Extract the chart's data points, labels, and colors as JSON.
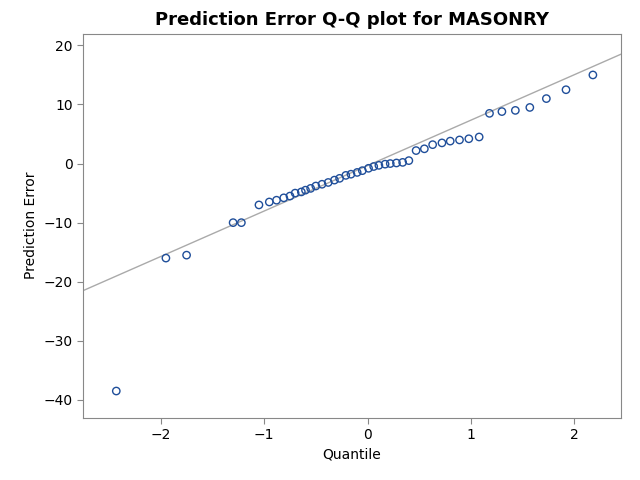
{
  "title": "Prediction Error Q-Q plot for MASONRY",
  "xlabel": "Quantile",
  "ylabel": "Prediction Error",
  "xlim": [
    -2.75,
    2.45
  ],
  "ylim": [
    -43,
    22
  ],
  "yticks": [
    20,
    10,
    0,
    -10,
    -20,
    -30,
    -40
  ],
  "xticks": [
    -2,
    -1,
    0,
    1,
    2
  ],
  "scatter_color": "#1f4e9a",
  "line_color": "#aaaaaa",
  "background_color": "#ffffff",
  "scatter_points": [
    [
      -2.43,
      -38.5
    ],
    [
      -1.95,
      -16.0
    ],
    [
      -1.75,
      -15.5
    ],
    [
      -1.3,
      -10.0
    ],
    [
      -1.22,
      -10.0
    ],
    [
      -1.05,
      -7.0
    ],
    [
      -0.95,
      -6.5
    ],
    [
      -0.88,
      -6.2
    ],
    [
      -0.81,
      -5.8
    ],
    [
      -0.75,
      -5.5
    ],
    [
      -0.7,
      -5.0
    ],
    [
      -0.64,
      -4.8
    ],
    [
      -0.6,
      -4.5
    ],
    [
      -0.55,
      -4.2
    ],
    [
      -0.5,
      -3.8
    ],
    [
      -0.44,
      -3.5
    ],
    [
      -0.38,
      -3.2
    ],
    [
      -0.32,
      -2.8
    ],
    [
      -0.27,
      -2.5
    ],
    [
      -0.21,
      -2.0
    ],
    [
      -0.16,
      -1.8
    ],
    [
      -0.1,
      -1.5
    ],
    [
      -0.05,
      -1.2
    ],
    [
      0.01,
      -0.8
    ],
    [
      0.06,
      -0.5
    ],
    [
      0.11,
      -0.3
    ],
    [
      0.17,
      -0.1
    ],
    [
      0.22,
      0.0
    ],
    [
      0.28,
      0.1
    ],
    [
      0.34,
      0.2
    ],
    [
      0.4,
      0.5
    ],
    [
      0.47,
      2.2
    ],
    [
      0.55,
      2.5
    ],
    [
      0.63,
      3.2
    ],
    [
      0.72,
      3.5
    ],
    [
      0.8,
      3.8
    ],
    [
      0.89,
      4.0
    ],
    [
      0.98,
      4.2
    ],
    [
      1.08,
      4.5
    ],
    [
      1.18,
      8.5
    ],
    [
      1.3,
      8.8
    ],
    [
      1.43,
      9.0
    ],
    [
      1.57,
      9.5
    ],
    [
      1.73,
      11.0
    ],
    [
      1.92,
      12.5
    ],
    [
      2.18,
      15.0
    ]
  ],
  "line_x": [
    -2.75,
    2.45
  ],
  "line_y": [
    -21.5,
    18.5
  ],
  "title_fontsize": 13,
  "label_fontsize": 10,
  "tick_fontsize": 10,
  "marker_size": 28,
  "marker_linewidth": 1.0,
  "line_linewidth": 1.0,
  "spine_color": "#888888"
}
